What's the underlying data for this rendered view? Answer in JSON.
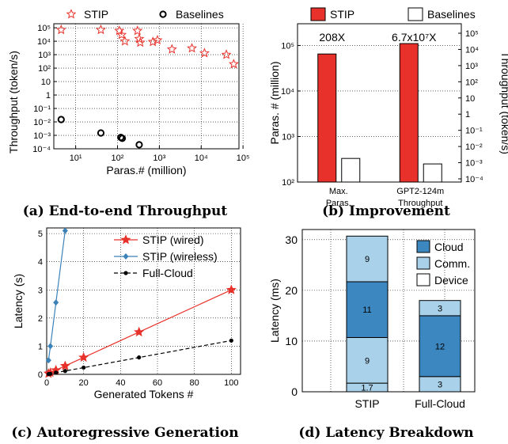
{
  "captions": {
    "a": "(a) End-to-end Throughput",
    "b": "(b) Improvement",
    "c": "(c) Autoregressive Generation",
    "d": "(d) Latency Breakdown"
  },
  "chart_data": [
    {
      "id": "a",
      "type": "scatter",
      "xlabel": "Paras.# (million)",
      "ylabel": "Throughput (token/s)",
      "xscale": "log",
      "yscale": "log",
      "xlim": [
        3,
        80000
      ],
      "ylim": [
        0.0001,
        200000
      ],
      "xticks": [
        {
          "v": 10,
          "label": "10¹"
        },
        {
          "v": 100,
          "label": "10²"
        },
        {
          "v": 1000,
          "label": "10³"
        },
        {
          "v": 10000,
          "label": "10⁴"
        },
        {
          "v": 100000,
          "label": "10⁵"
        }
      ],
      "yticks": [
        {
          "v": 0.0001,
          "label": "10⁻⁴"
        },
        {
          "v": 0.001,
          "label": "10⁻³"
        },
        {
          "v": 0.01,
          "label": "10⁻²"
        },
        {
          "v": 0.1,
          "label": "10⁻¹"
        },
        {
          "v": 1,
          "label": "1"
        },
        {
          "v": 10,
          "label": "10"
        },
        {
          "v": 100,
          "label": "10²"
        },
        {
          "v": 1000,
          "label": "10³"
        },
        {
          "v": 10000,
          "label": "10⁴"
        },
        {
          "v": 100000,
          "label": "10⁵"
        }
      ],
      "legend": [
        "STIP",
        "Baselines"
      ],
      "series": [
        {
          "name": "STIP",
          "marker": "star",
          "color": "#e8312a",
          "x": [
            4.5,
            40,
            110,
            125,
            150,
            300,
            330,
            350,
            700,
            900,
            2000,
            6000,
            12000,
            40000,
            60000
          ],
          "y": [
            70000,
            70000,
            60000,
            30000,
            10000,
            60000,
            15000,
            8000,
            9000,
            12000,
            2500,
            3000,
            1300,
            1000,
            200
          ]
        },
        {
          "name": "Baselines",
          "marker": "circle",
          "color": "#000000",
          "x": [
            4.5,
            40,
            120,
            130,
            330
          ],
          "y": [
            0.015,
            0.0015,
            0.0007,
            0.0006,
            0.0002
          ]
        }
      ],
      "grid": true,
      "legend_position": "top"
    },
    {
      "id": "b",
      "type": "bar",
      "categories": [
        "Max.\nParas.",
        "GPT2-124m\nThroughput"
      ],
      "ylabel_left": "Paras. # (million)",
      "ylabel_right": "Throughput (token/s)",
      "yscale": "log",
      "ylim_left": [
        100,
        300000
      ],
      "yticks_left": [
        {
          "v": 100,
          "label": "10²"
        },
        {
          "v": 1000,
          "label": "10³"
        },
        {
          "v": 10000,
          "label": "10⁴"
        },
        {
          "v": 100000,
          "label": "10⁵"
        }
      ],
      "yticks_right": [
        "10⁵",
        "10⁴",
        "10³",
        "10²",
        "10",
        "1",
        "10⁻¹",
        "10⁻²",
        "10⁻³",
        "10⁻⁴"
      ],
      "legend": [
        "STIP",
        "Baselines"
      ],
      "series": [
        {
          "name": "STIP",
          "color": "#e8312a",
          "values": [
            65000,
            110000
          ]
        },
        {
          "name": "Baselines",
          "color": "#ffffff",
          "values": [
            330,
            250
          ]
        }
      ],
      "annotations": [
        "208X",
        "6.7x10⁷X"
      ],
      "grid": true,
      "legend_position": "top"
    },
    {
      "id": "c",
      "type": "line",
      "xlabel": "Generated Tokens #",
      "ylabel": "Latency (s)",
      "xlim": [
        0,
        105
      ],
      "ylim": [
        0,
        5.2
      ],
      "xticks": [
        0,
        20,
        40,
        60,
        80,
        100
      ],
      "yticks": [
        0,
        1,
        2,
        3,
        4,
        5
      ],
      "series": [
        {
          "name": "STIP (wired)",
          "color": "#e8312a",
          "marker": "star",
          "style": "solid",
          "x": [
            1,
            2,
            5,
            10,
            20,
            50,
            100
          ],
          "y": [
            0.03,
            0.06,
            0.15,
            0.3,
            0.6,
            1.5,
            3.0
          ]
        },
        {
          "name": "STIP (wireless)",
          "color": "#3b82b8",
          "marker": "diamond",
          "style": "solid",
          "x": [
            1,
            2,
            5,
            10
          ],
          "y": [
            0.5,
            1.0,
            2.55,
            5.1
          ]
        },
        {
          "name": "Full-Cloud",
          "color": "#000000",
          "marker": "circle",
          "style": "dashed",
          "x": [
            1,
            2,
            5,
            10,
            20,
            50,
            100
          ],
          "y": [
            0.01,
            0.02,
            0.06,
            0.12,
            0.24,
            0.6,
            1.2
          ]
        }
      ],
      "grid": true,
      "legend_position": "top-right"
    },
    {
      "id": "d",
      "type": "bar",
      "stacked": true,
      "categories": [
        "STIP",
        "Full-Cloud"
      ],
      "ylabel": "Latency (ms)",
      "ylim": [
        0,
        32
      ],
      "yticks": [
        0,
        10,
        20,
        30
      ],
      "legend": [
        "Cloud",
        "Comm.",
        "Device"
      ],
      "colors": {
        "Cloud": "#3d87c0",
        "Comm.": "#a9d2ea",
        "Device": "#ffffff"
      },
      "stacks": [
        [
          {
            "part": "Comm.",
            "value": 1.7,
            "label": "1.7"
          },
          {
            "part": "Comm.",
            "value": 9,
            "label": "9"
          },
          {
            "part": "Cloud",
            "value": 11,
            "label": "11"
          },
          {
            "part": "Comm.",
            "value": 9,
            "label": "9"
          }
        ],
        [
          {
            "part": "Comm.",
            "value": 3,
            "label": "3"
          },
          {
            "part": "Cloud",
            "value": 12,
            "label": "12"
          },
          {
            "part": "Comm.",
            "value": 3,
            "label": "3"
          }
        ]
      ],
      "grid": true,
      "legend_position": "top-right"
    }
  ]
}
